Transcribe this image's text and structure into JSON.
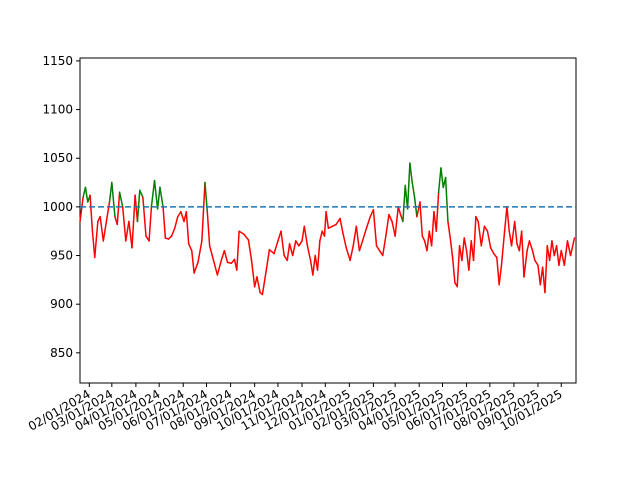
{
  "chart_data": {
    "type": "threshold-line",
    "x": [
      "2024-01-20",
      "2024-01-24",
      "2024-01-27",
      "2024-01-30",
      "2024-02-02",
      "2024-02-05",
      "2024-02-08",
      "2024-02-12",
      "2024-02-15",
      "2024-02-19",
      "2024-02-23",
      "2024-02-27",
      "2024-03-01",
      "2024-03-05",
      "2024-03-08",
      "2024-03-11",
      "2024-03-15",
      "2024-03-19",
      "2024-03-23",
      "2024-03-27",
      "2024-03-31",
      "2024-04-03",
      "2024-04-06",
      "2024-04-10",
      "2024-04-14",
      "2024-04-18",
      "2024-04-21",
      "2024-04-25",
      "2024-04-29",
      "2024-05-02",
      "2024-05-06",
      "2024-05-09",
      "2024-05-13",
      "2024-05-17",
      "2024-05-21",
      "2024-05-25",
      "2024-05-29",
      "2024-06-02",
      "2024-06-05",
      "2024-06-08",
      "2024-06-12",
      "2024-06-15",
      "2024-06-20",
      "2024-06-25",
      "2024-06-29",
      "2024-07-02",
      "2024-07-05",
      "2024-07-10",
      "2024-07-15",
      "2024-07-20",
      "2024-07-24",
      "2024-07-28",
      "2024-08-02",
      "2024-08-06",
      "2024-08-09",
      "2024-08-12",
      "2024-08-18",
      "2024-08-24",
      "2024-08-28",
      "2024-09-01",
      "2024-09-04",
      "2024-09-08",
      "2024-09-11",
      "2024-09-16",
      "2024-09-20",
      "2024-09-26",
      "2024-10-01",
      "2024-10-05",
      "2024-10-09",
      "2024-10-13",
      "2024-10-16",
      "2024-10-20",
      "2024-10-24",
      "2024-10-28",
      "2024-11-01",
      "2024-11-04",
      "2024-11-08",
      "2024-11-12",
      "2024-11-15",
      "2024-11-18",
      "2024-11-21",
      "2024-11-24",
      "2024-11-27",
      "2024-11-30",
      "2024-12-02",
      "2024-12-05",
      "2024-12-10",
      "2024-12-15",
      "2024-12-20",
      "2024-12-24",
      "2024-12-28",
      "2025-01-02",
      "2025-01-06",
      "2025-01-10",
      "2025-01-14",
      "2025-01-18",
      "2025-01-23",
      "2025-01-28",
      "2025-02-01",
      "2025-02-05",
      "2025-02-09",
      "2025-02-13",
      "2025-02-17",
      "2025-02-21",
      "2025-02-25",
      "2025-03-01",
      "2025-03-05",
      "2025-03-08",
      "2025-03-11",
      "2025-03-14",
      "2025-03-17",
      "2025-03-20",
      "2025-03-23",
      "2025-03-26",
      "2025-03-29",
      "2025-04-02",
      "2025-04-05",
      "2025-04-08",
      "2025-04-11",
      "2025-04-14",
      "2025-04-17",
      "2025-04-20",
      "2025-04-23",
      "2025-04-26",
      "2025-04-29",
      "2025-05-02",
      "2025-05-05",
      "2025-05-08",
      "2025-05-11",
      "2025-05-14",
      "2025-05-17",
      "2025-05-20",
      "2025-05-23",
      "2025-05-26",
      "2025-05-29",
      "2025-06-01",
      "2025-06-04",
      "2025-06-07",
      "2025-06-10",
      "2025-06-13",
      "2025-06-16",
      "2025-06-20",
      "2025-06-24",
      "2025-06-28",
      "2025-07-02",
      "2025-07-06",
      "2025-07-10",
      "2025-07-13",
      "2025-07-16",
      "2025-07-20",
      "2025-07-23",
      "2025-07-26",
      "2025-07-29",
      "2025-08-02",
      "2025-08-05",
      "2025-08-08",
      "2025-08-11",
      "2025-08-14",
      "2025-08-18",
      "2025-08-21",
      "2025-08-25",
      "2025-08-28",
      "2025-09-01",
      "2025-09-04",
      "2025-09-07",
      "2025-09-10",
      "2025-09-13",
      "2025-09-16",
      "2025-09-19",
      "2025-09-22",
      "2025-09-25",
      "2025-09-28",
      "2025-10-01",
      "2025-10-05",
      "2025-10-09",
      "2025-10-13",
      "2025-10-18"
    ],
    "values": [
      985,
      1010,
      1020,
      1005,
      1012,
      975,
      948,
      985,
      990,
      965,
      985,
      1005,
      1025,
      990,
      982,
      1015,
      1000,
      965,
      985,
      958,
      1012,
      985,
      1017,
      1010,
      970,
      965,
      1000,
      1027,
      998,
      1020,
      1000,
      968,
      967,
      970,
      978,
      990,
      995,
      985,
      995,
      962,
      955,
      932,
      943,
      965,
      1025,
      995,
      960,
      945,
      930,
      945,
      955,
      943,
      942,
      946,
      935,
      975,
      972,
      966,
      945,
      918,
      928,
      912,
      910,
      935,
      956,
      952,
      965,
      975,
      950,
      945,
      962,
      950,
      965,
      960,
      965,
      980,
      960,
      945,
      930,
      950,
      935,
      965,
      975,
      970,
      995,
      978,
      980,
      982,
      988,
      972,
      958,
      945,
      960,
      980,
      955,
      965,
      978,
      990,
      997,
      960,
      955,
      950,
      970,
      992,
      985,
      970,
      1000,
      992,
      985,
      1022,
      998,
      1045,
      1025,
      1010,
      990,
      1005,
      970,
      965,
      955,
      975,
      960,
      995,
      975,
      1015,
      1040,
      1020,
      1030,
      985,
      968,
      948,
      922,
      918,
      960,
      945,
      968,
      955,
      935,
      965,
      945,
      990,
      985,
      960,
      980,
      975,
      958,
      952,
      948,
      920,
      940,
      975,
      1000,
      975,
      960,
      985,
      962,
      955,
      975,
      928,
      955,
      965,
      955,
      945,
      940,
      920,
      938,
      912,
      960,
      945,
      965,
      950,
      960,
      940,
      955,
      940,
      965,
      950,
      968
    ],
    "threshold": 1000,
    "color_above": "#008000",
    "color_below": "#ff0000",
    "threshold_color": "#1f77b4",
    "xlim": [
      "2024-01-20",
      "2025-10-20"
    ],
    "ylim": [
      819,
      1153
    ],
    "yticks": [
      850,
      900,
      950,
      1000,
      1050,
      1100,
      1150
    ],
    "xticks": [
      {
        "value": "2024-02-01",
        "label": "02/01/2024"
      },
      {
        "value": "2024-03-01",
        "label": "03/01/2024"
      },
      {
        "value": "2024-04-01",
        "label": "04/01/2024"
      },
      {
        "value": "2024-05-01",
        "label": "05/01/2024"
      },
      {
        "value": "2024-06-01",
        "label": "06/01/2024"
      },
      {
        "value": "2024-07-01",
        "label": "07/01/2024"
      },
      {
        "value": "2024-08-01",
        "label": "08/01/2024"
      },
      {
        "value": "2024-09-01",
        "label": "09/01/2024"
      },
      {
        "value": "2024-10-01",
        "label": "10/01/2024"
      },
      {
        "value": "2024-11-01",
        "label": "11/01/2024"
      },
      {
        "value": "2024-12-01",
        "label": "12/01/2024"
      },
      {
        "value": "2025-01-01",
        "label": "01/01/2025"
      },
      {
        "value": "2025-02-01",
        "label": "02/01/2025"
      },
      {
        "value": "2025-03-01",
        "label": "03/01/2025"
      },
      {
        "value": "2025-04-01",
        "label": "04/01/2025"
      },
      {
        "value": "2025-05-01",
        "label": "05/01/2025"
      },
      {
        "value": "2025-06-01",
        "label": "06/01/2025"
      },
      {
        "value": "2025-07-01",
        "label": "07/01/2025"
      },
      {
        "value": "2025-08-01",
        "label": "08/01/2025"
      },
      {
        "value": "2025-09-01",
        "label": "09/01/2025"
      },
      {
        "value": "2025-10-01",
        "label": "10/01/2025"
      }
    ]
  }
}
